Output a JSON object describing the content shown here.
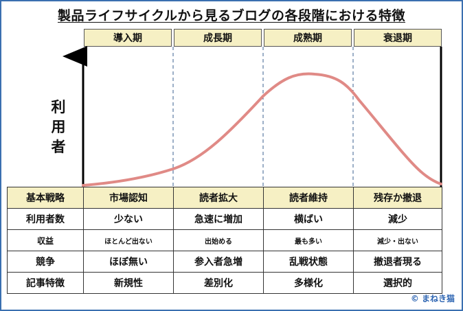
{
  "title": "製品ライフサイクルから見るブログの各段階における特徴",
  "phases": [
    "導入期",
    "成長期",
    "成熟期",
    "衰退期"
  ],
  "y_axis_label": [
    "利",
    "用",
    "者"
  ],
  "table": {
    "rows": [
      {
        "label": "基本戦略",
        "cells": [
          "市場認知",
          "読者拡大",
          "読者維持",
          "残存か撤退"
        ]
      },
      {
        "label": "利用者数",
        "cells": [
          "少ない",
          "急速に増加",
          "横ばい",
          "減少"
        ]
      },
      {
        "label": "収益",
        "cells": [
          "ほとんど出ない",
          "出始める",
          "最も多い",
          "減少・出ない"
        ]
      },
      {
        "label": "競争",
        "cells": [
          "ほぼ無い",
          "参入者急増",
          "乱戦状態",
          "撤退者現る"
        ]
      },
      {
        "label": "記事特徴",
        "cells": [
          "新規性",
          "差別化",
          "多様化",
          "選択的"
        ]
      }
    ]
  },
  "copyright": "© まねき猫",
  "colors": {
    "curve": "#e08a86",
    "header_bg": "#f6f0c4",
    "frame": "#3a6fb0",
    "copyright": "#2f66b3"
  }
}
